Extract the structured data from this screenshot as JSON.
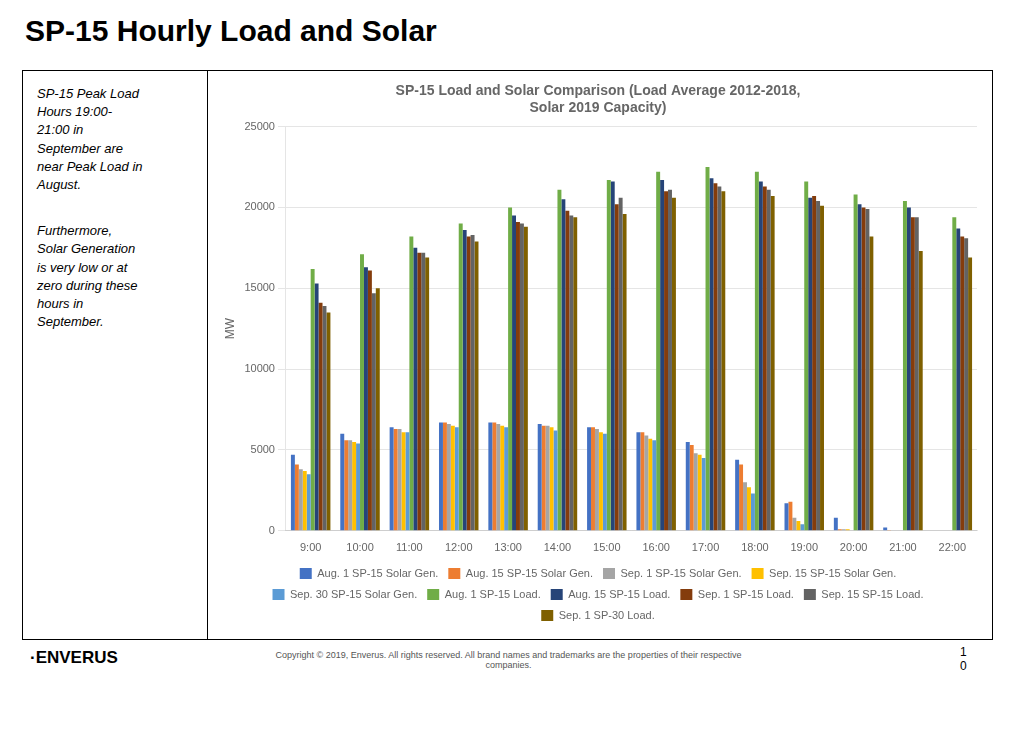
{
  "chart_data": {
    "type": "bar",
    "title": "SP-15 Load and Solar Comparison (Load Average 2012-2018,\nSolar 2019 Capacity)",
    "y_label": "MW",
    "categories": [
      "9:00",
      "10:00",
      "11:00",
      "12:00",
      "13:00",
      "14:00",
      "15:00",
      "16:00",
      "17:00",
      "18:00",
      "19:00",
      "20:00",
      "21:00",
      "22:00"
    ],
    "series": [
      {
        "name": "Aug. 1 SP-15 Solar Gen.",
        "color": "#4472C4",
        "values": [
          4700,
          6000,
          6400,
          6700,
          6700,
          6600,
          6400,
          6100,
          5500,
          4400,
          1700,
          800,
          200,
          0
        ]
      },
      {
        "name": "Aug. 15 SP-15 Solar Gen.",
        "color": "#ED7D31",
        "values": [
          4100,
          5600,
          6300,
          6700,
          6700,
          6500,
          6400,
          6100,
          5300,
          4100,
          1800,
          100,
          50,
          0
        ]
      },
      {
        "name": "Sep. 1 SP-15 Solar Gen.",
        "color": "#A5A5A5",
        "values": [
          3800,
          5600,
          6300,
          6600,
          6600,
          6500,
          6300,
          5900,
          4800,
          3000,
          800,
          100,
          0,
          0
        ]
      },
      {
        "name": "Sep. 15 SP-15 Solar Gen.",
        "color": "#FFC000",
        "values": [
          3700,
          5500,
          6100,
          6500,
          6500,
          6400,
          6100,
          5700,
          4700,
          2700,
          600,
          100,
          0,
          0
        ]
      },
      {
        "name": "Sep. 30 SP-15 Solar Gen.",
        "color": "#5B9BD5",
        "values": [
          3500,
          5400,
          6100,
          6400,
          6400,
          6200,
          6000,
          5600,
          4500,
          2300,
          400,
          0,
          0,
          0
        ]
      },
      {
        "name": "Aug. 1 SP-15 Load.",
        "color": "#70AD47",
        "values": [
          16200,
          17100,
          18200,
          19000,
          20000,
          21100,
          21700,
          22200,
          22500,
          22200,
          21600,
          20800,
          20400,
          19400
        ]
      },
      {
        "name": "Aug. 15 SP-15 Load.",
        "color": "#264478",
        "values": [
          15300,
          16300,
          17500,
          18600,
          19500,
          20500,
          21600,
          21700,
          21800,
          21600,
          20600,
          20200,
          20000,
          18700
        ]
      },
      {
        "name": "Sep. 1 SP-15 Load.",
        "color": "#843C0C",
        "values": [
          14100,
          16100,
          17200,
          18200,
          19100,
          19800,
          20200,
          21000,
          21500,
          21300,
          20700,
          20000,
          19400,
          18200
        ]
      },
      {
        "name": "Sep. 15 SP-15 Load.",
        "color": "#636363",
        "values": [
          13900,
          14700,
          17200,
          18300,
          19000,
          19500,
          20600,
          21100,
          21300,
          21100,
          20400,
          19900,
          19400,
          18100
        ]
      },
      {
        "name": "Sep. 1 SP-30 Load.",
        "color": "#7F6000",
        "values": [
          13500,
          15000,
          16900,
          17900,
          18800,
          19400,
          19600,
          20600,
          21000,
          20700,
          20100,
          18200,
          17300,
          16900
        ]
      }
    ],
    "ylim": [
      0,
      25000
    ],
    "yticks": [
      0,
      5000,
      10000,
      15000,
      20000,
      25000
    ],
    "grid": true,
    "legend": "bottom",
    "annotations": [
      "SP-15 Hourly Load and Solar",
      "SP-15 Peak Load\nHours 19:00-\n21:00 in\nSeptember are\nnear Peak Load in\nAugust.",
      "Furthermore,\nSolar Generation\nis very low or at\nzero during these\nhours in\nSeptember.",
      "Copyright © 2019, Enverus. All rights reserved. All brand names and trademarks are the properties of their respective\ncompanies.",
      "·ENVERUS",
      "1\n0"
    ]
  }
}
